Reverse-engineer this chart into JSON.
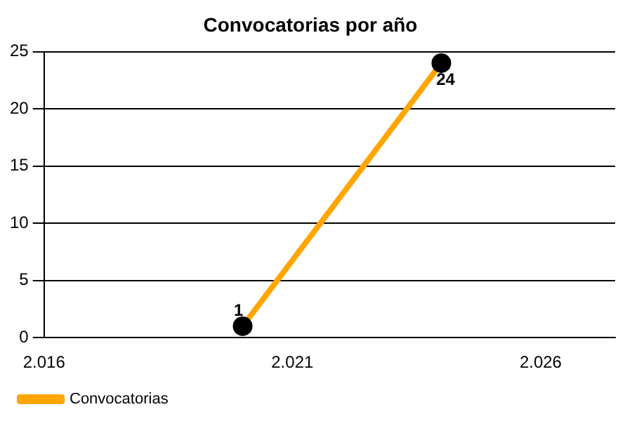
{
  "chart_data": {
    "type": "line",
    "title": "Convocatorias por año",
    "x": [
      2020,
      2024
    ],
    "series": [
      {
        "name": "Convocatorias",
        "color": "#ffa500",
        "values": [
          1,
          24
        ]
      }
    ],
    "xlim": [
      2016,
      2027.5
    ],
    "xticks": [
      {
        "value": 2016,
        "label": "2.016"
      },
      {
        "value": 2021,
        "label": "2.021"
      },
      {
        "value": 2026,
        "label": "2.026"
      }
    ],
    "ylim": [
      0,
      25
    ],
    "yticks": [
      0,
      5,
      10,
      15,
      20,
      25
    ],
    "grid": "y",
    "legend": "bottom left",
    "marker": "circle",
    "line_style": "solid",
    "data_labels": true
  }
}
